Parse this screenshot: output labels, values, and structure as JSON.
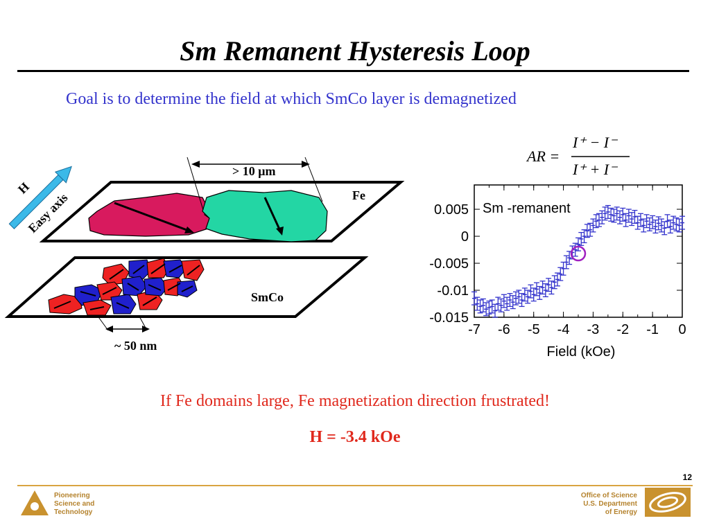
{
  "slide": {
    "title": "Sm Remanent Hysteresis Loop",
    "goal": "Goal is to determine the field at which SmCo layer is demagnetized",
    "conclusion": "If Fe domains large, Fe magnetization direction frustrated!",
    "result": "H = -3.4 kOe",
    "page_number": "12",
    "colors": {
      "blue_text": "#3333cc",
      "red_text": "#e0281c",
      "accent": "#d9a441"
    }
  },
  "diagram": {
    "h_label": "H",
    "easy_axis_label": "Easy axis",
    "fe_label": "Fe",
    "smco_label": "SmCo",
    "fe_domain_size": "> 10 μm",
    "smco_domain_size": "~ 50 nm"
  },
  "formula": {
    "lhs": "AR =",
    "numerator": "I⁺ − I⁻",
    "denominator": "I⁺ + I⁻"
  },
  "chart_data": {
    "type": "scatter",
    "series": [
      {
        "name": "Sm -remanent",
        "x": [
          -7.0,
          -6.9,
          -6.8,
          -6.7,
          -6.6,
          -6.5,
          -6.4,
          -6.3,
          -6.2,
          -6.1,
          -6.0,
          -5.9,
          -5.8,
          -5.7,
          -5.6,
          -5.5,
          -5.4,
          -5.3,
          -5.2,
          -5.1,
          -5.0,
          -4.9,
          -4.8,
          -4.7,
          -4.6,
          -4.5,
          -4.4,
          -4.3,
          -4.2,
          -4.1,
          -4.0,
          -3.9,
          -3.8,
          -3.7,
          -3.6,
          -3.5,
          -3.4,
          -3.3,
          -3.2,
          -3.1,
          -3.0,
          -2.9,
          -2.8,
          -2.7,
          -2.6,
          -2.5,
          -2.4,
          -2.3,
          -2.2,
          -2.1,
          -2.0,
          -1.9,
          -1.8,
          -1.7,
          -1.6,
          -1.5,
          -1.4,
          -1.3,
          -1.2,
          -1.1,
          -1.0,
          -0.9,
          -0.8,
          -0.7,
          -0.6,
          -0.5,
          -0.4,
          -0.3,
          -0.2,
          -0.1,
          0.0
        ],
        "y": [
          -0.0115,
          -0.0125,
          -0.013,
          -0.0128,
          -0.0135,
          -0.0132,
          -0.013,
          -0.0138,
          -0.0125,
          -0.0128,
          -0.012,
          -0.0125,
          -0.0118,
          -0.0122,
          -0.0115,
          -0.0112,
          -0.0118,
          -0.0108,
          -0.0112,
          -0.0102,
          -0.0108,
          -0.0098,
          -0.0105,
          -0.0095,
          -0.01,
          -0.009,
          -0.0095,
          -0.0085,
          -0.008,
          -0.007,
          -0.006,
          -0.0048,
          -0.004,
          -0.003,
          -0.0025,
          -0.0015,
          -0.0005,
          0.0,
          0.001,
          0.0012,
          0.002,
          0.0028,
          0.003,
          0.0035,
          0.0042,
          0.0045,
          0.004,
          0.0038,
          0.0042,
          0.0035,
          0.004,
          0.003,
          0.0038,
          0.0032,
          0.0036,
          0.0025,
          0.003,
          0.002,
          0.0028,
          0.0022,
          0.0026,
          0.0018,
          0.0024,
          0.002,
          0.0015,
          0.0028,
          0.0018,
          0.0025,
          0.0022,
          0.002,
          0.0025
        ],
        "error": 0.0012
      }
    ],
    "highlight": {
      "x": -3.5,
      "y": -0.0032
    },
    "xlabel": "Field (kOe)",
    "ylabel": "",
    "xlim": [
      -7,
      0
    ],
    "ylim": [
      -0.015,
      0.0095
    ],
    "x_ticks": [
      "-7",
      "-6",
      "-5",
      "-4",
      "-3",
      "-2",
      "-1",
      "0"
    ],
    "y_ticks": [
      "0.005",
      "0",
      "-0.005",
      "-0.01",
      "-0.015"
    ],
    "legend_text": "Sm -remanent",
    "series_color": "#3333cc",
    "highlight_color": "#a020c0"
  },
  "footer": {
    "left": [
      "Pioneering",
      "Science and",
      "Technology"
    ],
    "right": [
      "Office of Science",
      "U.S. Department",
      "of Energy"
    ]
  }
}
